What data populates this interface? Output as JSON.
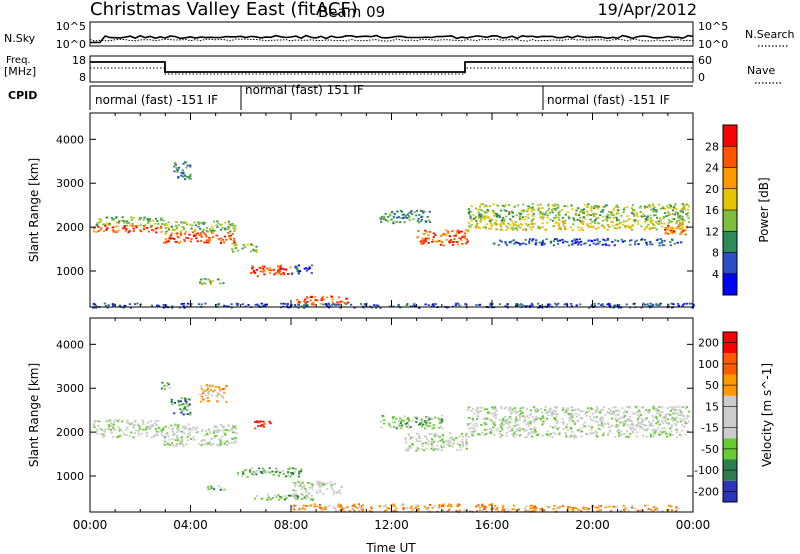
{
  "header": {
    "title": "Christmas Valley East (fitACF)",
    "beam": "Beam 09",
    "date": "19/Apr/2012"
  },
  "noise_panel": {
    "left_label": "N.Sky",
    "left_ticks": [
      "10^5",
      "10^0"
    ],
    "right_ticks": [
      "10^5",
      "10^0"
    ],
    "right_label": "N.Search"
  },
  "freq_panel": {
    "left_label_1": "Freq.",
    "left_label_2": "[MHz]",
    "left_ticks": [
      "18",
      "8"
    ],
    "right_ticks": [
      "60",
      "0"
    ],
    "right_label": "Nave"
  },
  "cpid": {
    "label": "CPID",
    "segments": [
      {
        "text": "normal (fast) -151 IF",
        "start_hour": 0,
        "end_hour": 6
      },
      {
        "text": "normal (fast) 151 IF",
        "start_hour": 6,
        "end_hour": 18
      },
      {
        "text": "normal (fast) -151 IF",
        "start_hour": 18,
        "end_hour": 24
      }
    ]
  },
  "colors": {
    "power": [
      "#0000ff",
      "#2e4ec8",
      "#2e8b57",
      "#7fbf3f",
      "#e6c600",
      "#ff9900",
      "#ff5500",
      "#ff0000"
    ],
    "velocity": [
      "#2a35b8",
      "#2e7d4f",
      "#66cc33",
      "#cccccc",
      "#cccccc",
      "#ff9900",
      "#ff5a00",
      "#ff0000"
    ]
  },
  "chart_data": [
    {
      "type": "heatmap",
      "name": "power",
      "ylabel": "Slant Range [km]",
      "ylim": [
        180,
        4600
      ],
      "yticks": [
        1000,
        2000,
        3000,
        4000
      ],
      "xlim": [
        0,
        24
      ],
      "colorbar": {
        "label": "Power [dB]",
        "ticks": [
          "4",
          "8",
          "12",
          "16",
          "20",
          "24",
          "28"
        ]
      },
      "bands": [
        {
          "t0": 0.1,
          "t1": 2.9,
          "r0": 2050,
          "r1": 2250,
          "level": 3
        },
        {
          "t0": 0.1,
          "t1": 2.9,
          "r0": 1900,
          "r1": 2050,
          "level": 6
        },
        {
          "t0": 2.9,
          "t1": 5.8,
          "r0": 1900,
          "r1": 2150,
          "level": 3
        },
        {
          "t0": 2.9,
          "t1": 5.8,
          "r0": 1650,
          "r1": 1900,
          "level": 6
        },
        {
          "t0": 3.3,
          "t1": 4.0,
          "r0": 3100,
          "r1": 3500,
          "level": 2
        },
        {
          "t0": 5.6,
          "t1": 6.6,
          "r0": 1450,
          "r1": 1650,
          "level": 3
        },
        {
          "t0": 6.3,
          "t1": 8.0,
          "r0": 900,
          "r1": 1150,
          "level": 6
        },
        {
          "t0": 8.0,
          "t1": 8.8,
          "r0": 950,
          "r1": 1150,
          "level": 1
        },
        {
          "t0": 4.3,
          "t1": 5.3,
          "r0": 700,
          "r1": 850,
          "level": 3
        },
        {
          "t0": 8.2,
          "t1": 10.3,
          "r0": 250,
          "r1": 450,
          "level": 6
        },
        {
          "t0": 11.5,
          "t1": 13.5,
          "r0": 2100,
          "r1": 2400,
          "level": 2
        },
        {
          "t0": 13.0,
          "t1": 15.0,
          "r0": 1600,
          "r1": 1950,
          "level": 6
        },
        {
          "t0": 15.0,
          "t1": 23.8,
          "r0": 2150,
          "r1": 2550,
          "level": 3
        },
        {
          "t0": 15.0,
          "t1": 23.8,
          "r0": 1950,
          "r1": 2150,
          "level": 4
        },
        {
          "t0": 16.0,
          "t1": 23.5,
          "r0": 1600,
          "r1": 1750,
          "level": 1
        },
        {
          "t0": 22.8,
          "t1": 23.8,
          "r0": 1850,
          "r1": 2050,
          "level": 6
        },
        {
          "t0": 0.0,
          "t1": 24.0,
          "r0": 180,
          "r1": 280,
          "level": 1
        }
      ]
    },
    {
      "type": "heatmap",
      "name": "velocity",
      "xlabel": "Time UT",
      "ylabel": "Slant Range [km]",
      "ylim": [
        180,
        4600
      ],
      "yticks": [
        1000,
        2000,
        3000,
        4000
      ],
      "xlim": [
        0,
        24
      ],
      "xticks": [
        "00:00",
        "04:00",
        "08:00",
        "12:00",
        "16:00",
        "20:00",
        "00:00"
      ],
      "colorbar": {
        "label": "Velocity [m s^-1]",
        "ticks": [
          "200",
          "100",
          "50",
          "15",
          "-15",
          "-50",
          "-100",
          "-200"
        ]
      },
      "bands": [
        {
          "t0": 0.1,
          "t1": 2.9,
          "r0": 1900,
          "r1": 2300,
          "level": 3
        },
        {
          "t0": 2.9,
          "t1": 5.8,
          "r0": 1700,
          "r1": 2200,
          "level": 3
        },
        {
          "t0": 4.3,
          "t1": 5.4,
          "r0": 2700,
          "r1": 3100,
          "level": 5
        },
        {
          "t0": 3.2,
          "t1": 4.0,
          "r0": 2400,
          "r1": 2800,
          "level": 1
        },
        {
          "t0": 6.5,
          "t1": 7.2,
          "r0": 2100,
          "r1": 2300,
          "level": 7
        },
        {
          "t0": 2.8,
          "t1": 3.2,
          "r0": 2950,
          "r1": 3150,
          "level": 2
        },
        {
          "t0": 5.7,
          "t1": 8.4,
          "r0": 1000,
          "r1": 1200,
          "level": 2
        },
        {
          "t0": 8.0,
          "t1": 10.0,
          "r0": 600,
          "r1": 900,
          "level": 3
        },
        {
          "t0": 4.4,
          "t1": 5.3,
          "r0": 700,
          "r1": 800,
          "level": 2
        },
        {
          "t0": 6.5,
          "t1": 9.0,
          "r0": 450,
          "r1": 600,
          "level": 2
        },
        {
          "t0": 11.5,
          "t1": 14.0,
          "r0": 2100,
          "r1": 2400,
          "level": 2
        },
        {
          "t0": 12.5,
          "t1": 15.0,
          "r0": 1600,
          "r1": 2000,
          "level": 3
        },
        {
          "t0": 15.0,
          "t1": 23.8,
          "r0": 1900,
          "r1": 2600,
          "level": 3
        },
        {
          "t0": 8.0,
          "t1": 16.0,
          "r0": 200,
          "r1": 380,
          "level": 5
        },
        {
          "t0": 16.0,
          "t1": 23.5,
          "r0": 200,
          "r1": 350,
          "level": 5
        }
      ]
    }
  ]
}
